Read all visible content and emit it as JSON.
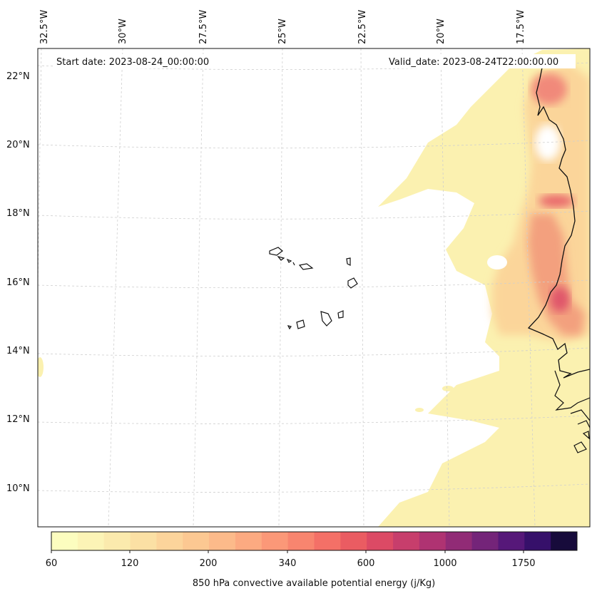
{
  "map": {
    "start_label": "Start date: 2023-08-24_00:00:00",
    "valid_label": "Valid_date: 2023-08-24T22:00:00.00",
    "lon_labels": [
      "32.5°W",
      "30°W",
      "27.5°W",
      "25°W",
      "22.5°W",
      "20°W",
      "17.5°W"
    ],
    "lat_labels": [
      "22°N",
      "20°N",
      "18°N",
      "16°N",
      "14°N",
      "12°N",
      "10°N"
    ]
  },
  "colorbar": {
    "title": "850 hPa convective available potential energy (j/Kg)",
    "tick_labels": [
      "60",
      "120",
      "200",
      "340",
      "600",
      "1000",
      "1750"
    ],
    "colors": [
      "#fcfdbf",
      "#fcf4b6",
      "#fbeaad",
      "#fbe0a4",
      "#fcd49b",
      "#fcc892",
      "#fcba8a",
      "#fcaa81",
      "#fb9878",
      "#f8856f",
      "#f47067",
      "#ea5c62",
      "#dc4a65",
      "#c73e6c",
      "#af3372",
      "#912b76",
      "#742479",
      "#561879",
      "#36106a",
      "#170b3b"
    ]
  },
  "colors": {
    "coastline": "#111111",
    "grid": "#cfcfcf",
    "cape_low": "#fbf1b0",
    "cape_mid": "#fbd59a",
    "cape_high": "#ee7c6c"
  }
}
